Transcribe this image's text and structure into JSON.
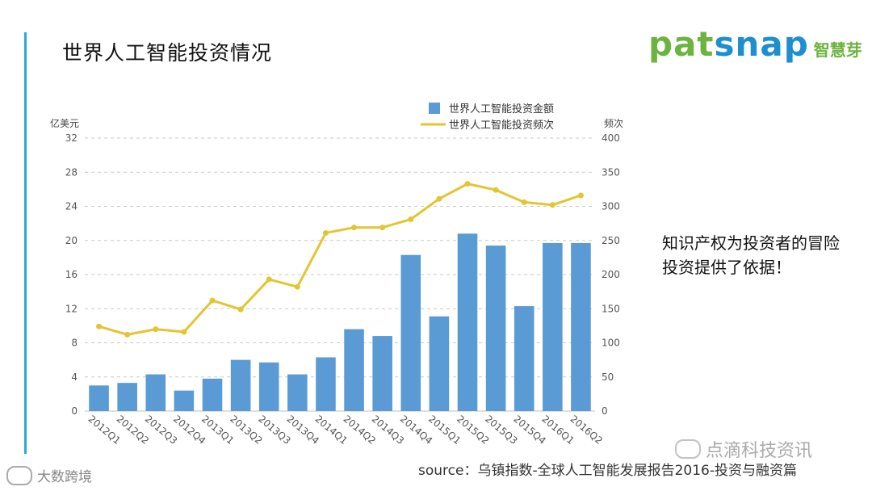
{
  "colors": {
    "accent": "#29a9d6",
    "bar": "#5b9bd5",
    "line": "#e3c532",
    "grid": "#c9c9c9",
    "axis_text": "#555555"
  },
  "header": {
    "title": "世界人工智能投资情况"
  },
  "logo": {
    "word_green": "pat",
    "word_blue": "snap",
    "cn": "智慧芽"
  },
  "side_note": "知识产权为投资者的冒险投资提供了依据！",
  "source": "source：乌镇指数-全球人工智能发展报告2016-投资与融资篇",
  "watermarks": {
    "left": "大数跨境",
    "right": "点滴科技资讯"
  },
  "chart_data": {
    "type": "bar",
    "title": "",
    "categories": [
      "2012Q1",
      "2012Q2",
      "2012Q3",
      "2012Q4",
      "2013Q1",
      "2013Q2",
      "2013Q3",
      "2013Q4",
      "2014Q1",
      "2014Q2",
      "2014Q3",
      "2014Q4",
      "2015Q1",
      "2015Q2",
      "2015Q3",
      "2015Q4",
      "2016Q1",
      "2016Q2"
    ],
    "series": [
      {
        "name": "世界人工智能投资金额",
        "type": "bar",
        "axis": "left",
        "values": [
          3.0,
          3.3,
          4.3,
          2.4,
          3.8,
          6.0,
          5.7,
          4.3,
          6.3,
          9.6,
          8.8,
          18.3,
          11.1,
          20.8,
          19.4,
          12.3,
          19.7,
          19.7
        ]
      },
      {
        "name": "世界人工智能投资频次",
        "type": "line",
        "axis": "right",
        "values": [
          124,
          112,
          120,
          116,
          162,
          149,
          193,
          182,
          261,
          269,
          269,
          281,
          311,
          333,
          324,
          306,
          302,
          316
        ]
      }
    ],
    "ylabel": "亿美元",
    "y2label": "频次",
    "ylim": [
      0,
      32
    ],
    "yticks": [
      0,
      4,
      8,
      12,
      16,
      20,
      24,
      28,
      32
    ],
    "y2lim": [
      0,
      400
    ],
    "y2ticks": [
      0,
      50,
      100,
      150,
      200,
      250,
      300,
      350,
      400
    ],
    "grid": true,
    "legend": "top-right"
  }
}
